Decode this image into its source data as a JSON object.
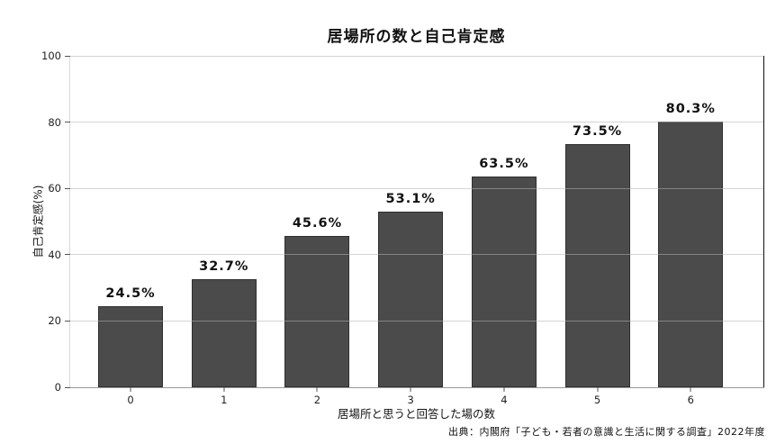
{
  "chart_data": {
    "type": "bar",
    "title": "居場所の数と自己肯定感",
    "categories": [
      "0",
      "1",
      "2",
      "3",
      "4",
      "5",
      "6"
    ],
    "values": [
      24.5,
      32.7,
      45.6,
      53.1,
      63.5,
      73.5,
      80.3
    ],
    "value_labels": [
      "24.5%",
      "32.7%",
      "45.6%",
      "53.1%",
      "63.5%",
      "73.5%",
      "80.3%"
    ],
    "xlabel": "居場所と思うと回答した場の数",
    "ylabel": "自己肯定感(%)",
    "ylim": [
      0,
      100
    ],
    "yticks": [
      0,
      20,
      40,
      60,
      80,
      100
    ],
    "grid": true,
    "grid_over_bars": true,
    "legend": "none",
    "colors": {
      "bar_fill": "#4b4b4b",
      "bar_edge": "#2f2f2f",
      "gridline": "#b2b2b2",
      "right_spine": "#111111",
      "left_spine": "#d9d9d9",
      "bottom_spine": "#9a9a9a",
      "text": "#111111",
      "background": "#ffffff"
    }
  },
  "source_note": "出典：内閣府「子ども・若者の意識と生活に関する調査」2022年度"
}
